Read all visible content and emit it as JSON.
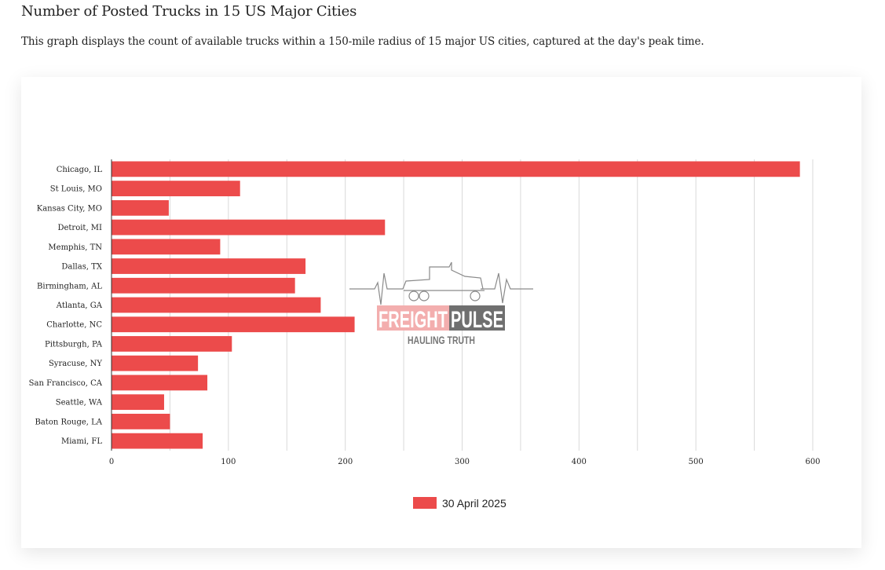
{
  "page": {
    "title": "Number of Posted Trucks in 15 US Major Cities",
    "subtitle": "This graph displays the count of available trucks within a 150-mile radius of 15 major US cities, captured at the day's peak time."
  },
  "watermark": {
    "icon": "truck-heartbeat-icon",
    "brand_a": "FREIGHT",
    "brand_b": "PULSE",
    "tagline": "HAULING TRUTH"
  },
  "colors": {
    "bar": "#ec4b4b",
    "watermark_dark": "#6f6f6f",
    "watermark_light": "#ffffff"
  },
  "chart_data": {
    "type": "bar",
    "orientation": "horizontal",
    "title": "",
    "xlabel": "",
    "ylabel": "",
    "categories": [
      "Chicago, IL",
      "St Louis, MO",
      "Kansas City, MO",
      "Detroit, MI",
      "Memphis, TN",
      "Dallas, TX",
      "Birmingham, AL",
      "Atlanta, GA",
      "Charlotte, NC",
      "Pittsburgh, PA",
      "Syracuse, NY",
      "San Francisco, CA",
      "Seattle, WA",
      "Baton Rouge, LA",
      "Miami, FL"
    ],
    "series": [
      {
        "name": "30 April 2025",
        "values": [
          589,
          110,
          49,
          234,
          93,
          166,
          157,
          179,
          208,
          103,
          74,
          82,
          45,
          50,
          78
        ]
      }
    ],
    "xlim": [
      0,
      600
    ],
    "xticks": [
      0,
      100,
      200,
      300,
      400,
      500,
      600
    ],
    "grid": "vertical",
    "legend": "bottom-center"
  }
}
